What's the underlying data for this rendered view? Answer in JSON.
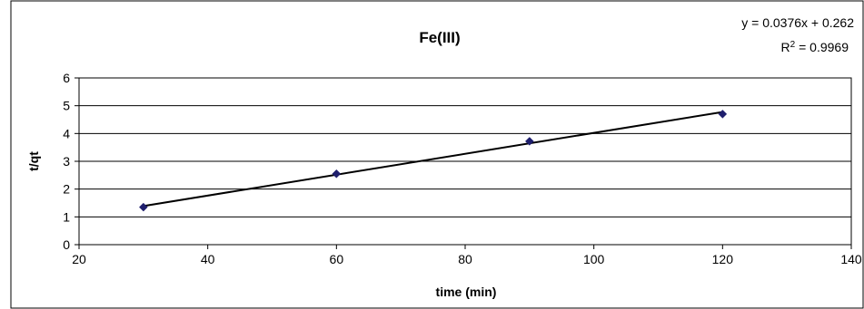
{
  "chart_data": {
    "type": "scatter",
    "title": "Fe(III)",
    "xlabel": "time (min)",
    "ylabel": "t/qt",
    "xlim": [
      20,
      140
    ],
    "ylim": [
      0,
      6
    ],
    "x_ticks": [
      20,
      40,
      60,
      80,
      100,
      120,
      140
    ],
    "y_ticks": [
      0,
      1,
      2,
      3,
      4,
      5,
      6
    ],
    "grid": "horizontal",
    "legend": "none",
    "series": [
      {
        "x": [
          30,
          60,
          90,
          120
        ],
        "y": [
          1.35,
          2.55,
          3.72,
          4.7
        ],
        "marker": "diamond",
        "color": "#1f1f6e"
      }
    ],
    "trendline": {
      "type": "linear",
      "slope": 0.0376,
      "intercept": 0.262,
      "x_range": [
        30,
        120
      ],
      "color": "#000000",
      "equation_text": "y = 0.0376x + 0.262",
      "r2_label": "R",
      "r2_superscript": "2",
      "r2_value": " = 0.9969"
    },
    "colors": {
      "frame_outer": "#000000",
      "plot_area": "#ffffff",
      "grid": "#000000"
    }
  }
}
